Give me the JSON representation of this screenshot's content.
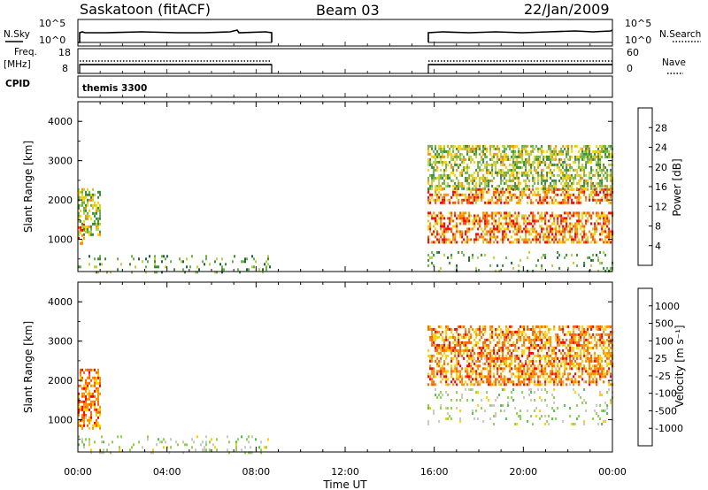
{
  "header": {
    "station": "Saskatoon (fitACF)",
    "beam": "Beam 03",
    "date": "22/Jan/2009"
  },
  "status_panels": {
    "nsky_label": "N.Sky",
    "nsky_ticks": [
      "10^5",
      "10^0"
    ],
    "nsearch_label": "N.Search",
    "nsearch_ticks": [
      "10^5",
      "10^0"
    ],
    "freq_label_1": "Freq.",
    "freq_label_2": "[MHz]",
    "freq_ticks": [
      "18",
      "8"
    ],
    "nave_label": "Nave",
    "nave_ticks": [
      "60",
      "0"
    ],
    "cpid_label": "CPID",
    "cpid_value": "themis 3300"
  },
  "chart_data": [
    {
      "type": "heatmap",
      "panel": "power",
      "ylabel": "Slant Range [km]",
      "xlabel": "Time UT",
      "xlim": [
        0,
        24
      ],
      "ylim": [
        180,
        4500
      ],
      "yticks": [
        "1000",
        "2000",
        "3000",
        "4000"
      ],
      "xticks": [
        "00:00",
        "04:00",
        "08:00",
        "12:00",
        "16:00",
        "20:00",
        "00:00"
      ],
      "colorbar": {
        "label": "Power [dB]",
        "ticks": [
          "28",
          "24",
          "20",
          "16",
          "12",
          "8",
          "4"
        ],
        "colors": [
          "#0000ff",
          "#3030c8",
          "#206040",
          "#3a8a3a",
          "#6ab04c",
          "#b8d040",
          "#ffd000",
          "#ff9000",
          "#ff5000",
          "#ff0000"
        ]
      },
      "regions": [
        {
          "t": [
            0.0,
            0.3
          ],
          "r": [
            900,
            1400
          ],
          "level": "high"
        },
        {
          "t": [
            0.0,
            1.0
          ],
          "r": [
            1100,
            2300
          ],
          "level": "mid"
        },
        {
          "t": [
            0.0,
            8.7
          ],
          "r": [
            180,
            600
          ],
          "level": "low"
        },
        {
          "t": [
            15.7,
            24.0
          ],
          "r": [
            1900,
            2300
          ],
          "level": "high"
        },
        {
          "t": [
            15.7,
            24.0
          ],
          "r": [
            950,
            1700
          ],
          "level": "high"
        },
        {
          "t": [
            15.7,
            24.0
          ],
          "r": [
            2300,
            3400
          ],
          "level": "mid"
        },
        {
          "t": [
            15.7,
            24.0
          ],
          "r": [
            180,
            700
          ],
          "level": "low"
        }
      ]
    },
    {
      "type": "heatmap",
      "panel": "velocity",
      "ylabel": "Slant Range [km]",
      "xlabel": "Time UT",
      "xlim": [
        0,
        24
      ],
      "ylim": [
        180,
        4500
      ],
      "yticks": [
        "1000",
        "2000",
        "3000",
        "4000"
      ],
      "xticks": [
        "00:00",
        "04:00",
        "08:00",
        "12:00",
        "16:00",
        "20:00",
        "00:00"
      ],
      "colorbar": {
        "label": "Velocity [m s⁻¹]",
        "ticks": [
          "1000",
          "500",
          "100",
          "25",
          "-25",
          "-100",
          "-500",
          "-1000"
        ],
        "colors": [
          "#2040c0",
          "#3a8a3a",
          "#50c050",
          "#90d050",
          "#c8c8c0",
          "#ffd000",
          "#ff9000",
          "#ff6000",
          "#ff0000"
        ]
      },
      "regions": [
        {
          "t": [
            0.0,
            1.0
          ],
          "r": [
            800,
            2300
          ],
          "level": "neg"
        },
        {
          "t": [
            0.0,
            8.7
          ],
          "r": [
            180,
            600
          ],
          "level": "zero"
        },
        {
          "t": [
            15.7,
            24.0
          ],
          "r": [
            1900,
            2400
          ],
          "level": "neg"
        },
        {
          "t": [
            15.7,
            24.0
          ],
          "r": [
            900,
            1800
          ],
          "level": "zero"
        },
        {
          "t": [
            15.7,
            24.0
          ],
          "r": [
            2400,
            3400
          ],
          "level": "neg"
        }
      ]
    }
  ],
  "colors": {
    "frame": "#000000",
    "background": "#ffffff"
  }
}
